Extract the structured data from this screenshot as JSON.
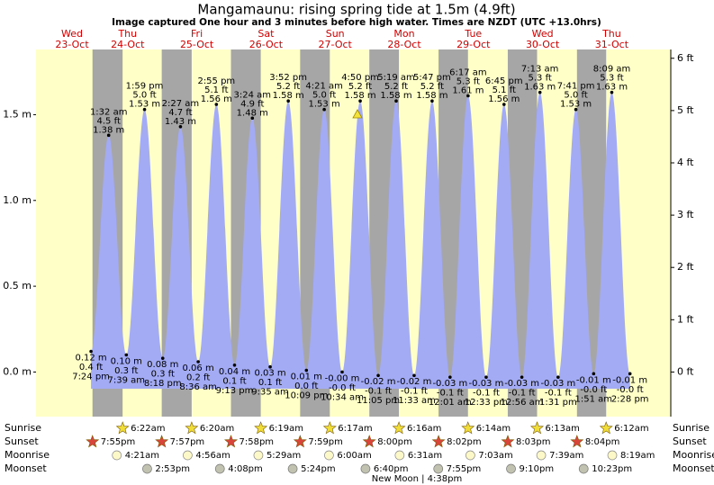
{
  "chart_data": {
    "type": "area",
    "title": "Mangamaunu: rising  spring tide at 1.5m (4.9ft)",
    "subtitle": "Image captured One hour and 3 minutes before high water. Times are NZDT (UTC +13.0hrs)",
    "weekdays": [
      "Wed",
      "Thu",
      "Fri",
      "Sat",
      "Sun",
      "Mon",
      "Tue",
      "Wed",
      "Thu"
    ],
    "dates": [
      "23-Oct",
      "24-Oct",
      "25-Oct",
      "26-Oct",
      "27-Oct",
      "28-Oct",
      "29-Oct",
      "30-Oct",
      "31-Oct"
    ],
    "color": "#a3abf5",
    "ylim": [
      -0.26,
      1.88
    ],
    "yticks": [
      {
        "value": 0,
        "label": "0.0 m"
      },
      {
        "value": 0.5,
        "label": "0.5 m"
      },
      {
        "value": 1.0,
        "label": "1.0 m"
      },
      {
        "value": 1.5,
        "label": "1.5 m"
      }
    ],
    "y2lim": [
      -0.853,
      6.168
    ],
    "y2ticks": [
      {
        "value": 0,
        "label": "0 ft"
      },
      {
        "value": 1,
        "label": "1 ft"
      },
      {
        "value": 2,
        "label": "2 ft"
      },
      {
        "value": 3,
        "label": "3 ft"
      },
      {
        "value": 4,
        "label": "4 ft"
      },
      {
        "value": 5,
        "label": "5 ft"
      },
      {
        "value": 6,
        "label": "6 ft"
      }
    ],
    "extremes": {
      "times": [
        "7:24 pm",
        "1:32 am",
        "7:39 am",
        "1:59 pm",
        "8:18 pm",
        "2:27 am",
        "8:36 am",
        "2:55 pm",
        "9:13 pm",
        "3:24 am",
        "9:35 am",
        "3:52 pm",
        "10:09 pm",
        "4:21 am",
        "10:34 am",
        "4:50 pm",
        "11:05 pm",
        "5:19 am",
        "11:33 am",
        "5:47 pm",
        "12:01 am",
        "6:17 am",
        "12:33 pm",
        "6:45 pm",
        "12:56 am",
        "7:13 am",
        "1:31 pm",
        "7:41 pm",
        "1:51 am",
        "8:09 am",
        "2:28 pm"
      ],
      "values": [
        0.12,
        1.38,
        0.1,
        1.53,
        0.08,
        1.43,
        0.06,
        1.56,
        0.04,
        1.48,
        0.03,
        1.58,
        0.01,
        1.53,
        0,
        1.58,
        -0.02,
        1.58,
        -0.02,
        1.58,
        -0.03,
        1.61,
        -0.03,
        1.56,
        -0.03,
        1.63,
        -0.03,
        1.53,
        -0.01,
        1.63,
        -0.01
      ],
      "value_labels": [
        "0.12 m",
        "1.38 m",
        "0.10 m",
        "1.53 m",
        "0.08 m",
        "1.43 m",
        "0.06 m",
        "1.56 m",
        "0.04 m",
        "1.48 m",
        "0.03 m",
        "1.58 m",
        "0.01 m",
        "1.53 m",
        "-0.00 m",
        "1.58 m",
        "-0.02 m",
        "1.58 m",
        "-0.02 m",
        "1.58 m",
        "-0.03 m",
        "1.61 m",
        "-0.03 m",
        "1.56 m",
        "-0.03 m",
        "1.63 m",
        "-0.03 m",
        "1.53 m",
        "-0.01 m",
        "1.63 m",
        "-0.01 m"
      ],
      "ft_labels": [
        "0.4 ft",
        "4.5 ft",
        "0.3 ft",
        "5.0 ft",
        "0.3 ft",
        "4.7 ft",
        "0.2 ft",
        "5.1 ft",
        "0.1 ft",
        "4.9 ft",
        "0.1 ft",
        "5.2 ft",
        "0.0 ft",
        "5.0 ft",
        "-0.0 ft",
        "5.2 ft",
        "-0.1 ft",
        "5.2 ft",
        "-0.1 ft",
        "5.2 ft",
        "-0.1 ft",
        "5.3 ft",
        "-0.1 ft",
        "5.1 ft",
        "-0.1 ft",
        "5.3 ft",
        "-0.1 ft",
        "5.0 ft",
        "-0.0 ft",
        "5.3 ft",
        "-0.0 ft"
      ]
    },
    "sunrise_label": "Sunrise",
    "sunset_label": "Sunset",
    "moonrise_label": "Moonrise",
    "moonset_label": "Moonset",
    "sunrise": [
      "6:22am",
      "6:20am",
      "6:19am",
      "6:17am",
      "6:16am",
      "6:14am",
      "6:13am",
      "6:12am"
    ],
    "sunset": [
      "7:55pm",
      "7:57pm",
      "7:58pm",
      "7:59pm",
      "8:00pm",
      "8:02pm",
      "8:03pm",
      "8:04pm"
    ],
    "moonrise": [
      "4:21am",
      "4:56am",
      "5:29am",
      "6:00am",
      "6:31am",
      "7:03am",
      "7:39am",
      "8:19am"
    ],
    "moonset": [
      "2:53pm",
      "4:08pm",
      "5:24pm",
      "6:40pm",
      "7:55pm",
      "9:10pm",
      "10:23pm"
    ],
    "moon_phase": "New Moon | 4:38pm"
  }
}
